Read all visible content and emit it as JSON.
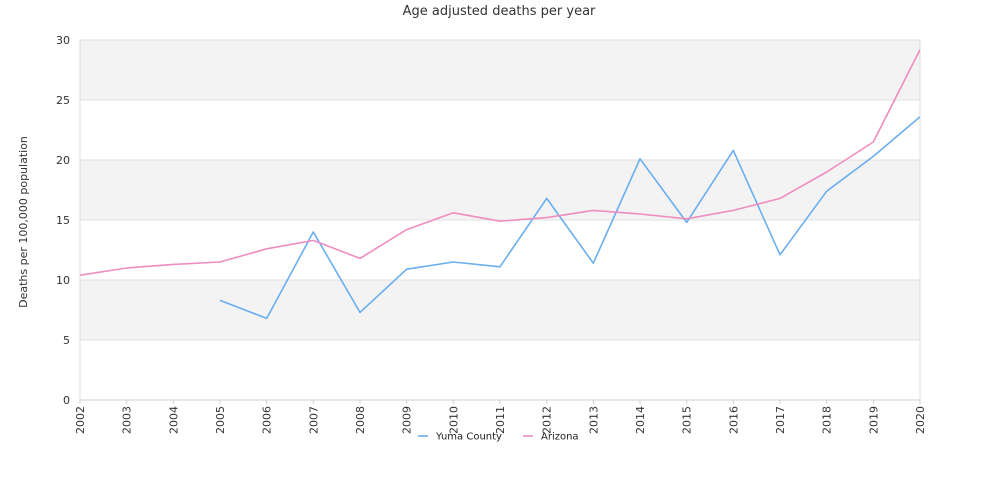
{
  "chart_data": {
    "type": "line",
    "title": "Age adjusted deaths per year",
    "xlabel": "",
    "ylabel": "Deaths per 100,000 population",
    "x": [
      "2002",
      "2003",
      "2004",
      "2005",
      "2006",
      "2007",
      "2008",
      "2009",
      "2010",
      "2011",
      "2012",
      "2013",
      "2014",
      "2015",
      "2016",
      "2017",
      "2018",
      "2019",
      "2020"
    ],
    "ylim": [
      0,
      30
    ],
    "yticks": [
      "0",
      "5",
      "10",
      "15",
      "20",
      "25",
      "30"
    ],
    "grid": "alternating horizontal bands",
    "legend_position": "bottom",
    "series": [
      {
        "name": "Yuma County",
        "color": "#6aaef0",
        "values": [
          null,
          null,
          null,
          8.3,
          6.8,
          14.0,
          7.3,
          10.9,
          11.5,
          11.1,
          16.8,
          11.4,
          20.1,
          14.8,
          20.8,
          12.1,
          17.4,
          20.3,
          23.6
        ]
      },
      {
        "name": "Arizona",
        "color": "#f08cc0",
        "values": [
          10.4,
          11.0,
          11.3,
          11.5,
          12.6,
          13.3,
          11.8,
          14.2,
          15.6,
          14.9,
          15.2,
          15.8,
          15.5,
          15.1,
          15.8,
          16.8,
          19.0,
          21.5,
          29.2
        ]
      }
    ]
  }
}
